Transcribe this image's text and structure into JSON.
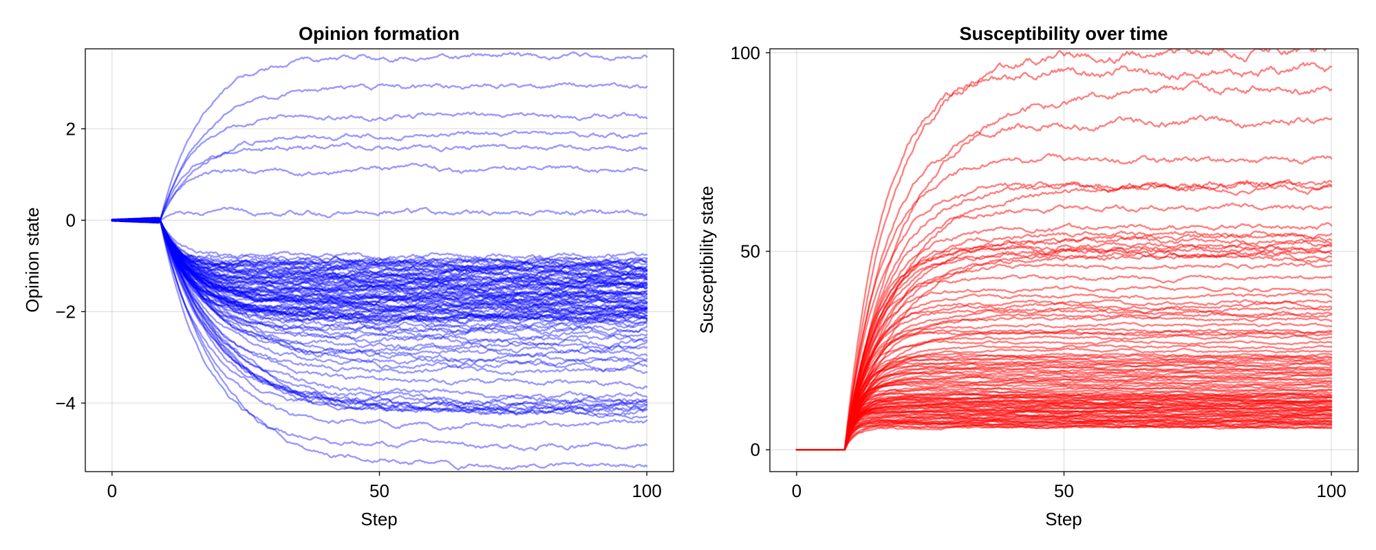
{
  "chart_data": [
    {
      "type": "line",
      "title": "Opinion formation",
      "xlabel": "Step",
      "ylabel": "Opinion state",
      "xlim": [
        -5,
        105
      ],
      "ylim": [
        -5.5,
        3.75
      ],
      "xticks": [
        0,
        50,
        100
      ],
      "yticks": [
        -4,
        -2,
        0,
        2
      ],
      "grid": true,
      "color": "#0000ff",
      "line_opacity": 0.4,
      "step_range": [
        0,
        100
      ],
      "onset_step": 9,
      "initial_value": 0,
      "series_count": 100,
      "series_final_values": [
        3.58,
        2.05,
        1.38,
        -0.85,
        -0.9,
        -0.95,
        -1.0,
        -1.05,
        -1.1,
        -1.15,
        -1.2,
        -1.25,
        -1.3,
        -1.35,
        -1.4,
        -1.45,
        -1.5,
        -1.55,
        -1.6,
        -1.65,
        -1.7,
        -1.75,
        -1.8,
        -1.85,
        -1.9,
        -1.95,
        -2.0,
        -2.05,
        -2.1,
        -2.15,
        -2.2,
        -2.3,
        -2.45,
        -2.65,
        -2.85,
        -3.05,
        -3.25,
        -3.9,
        -4.0,
        -4.1,
        -4.15,
        -4.3,
        -5.4
      ]
    },
    {
      "type": "line",
      "title": "Susceptibility over time",
      "xlabel": "Step",
      "ylabel": "Susceptibility state",
      "xlim": [
        -5,
        105
      ],
      "ylim": [
        -5.5,
        101
      ],
      "xticks": [
        0,
        50,
        100
      ],
      "yticks": [
        0,
        50,
        100
      ],
      "grid": true,
      "color": "#ff0000",
      "line_opacity": 0.5,
      "step_range": [
        0,
        100
      ],
      "onset_step": 9,
      "initial_value": 0,
      "series_count": 100,
      "series_final_values": [
        100,
        89.5,
        67,
        66.5,
        55,
        53,
        51,
        49.5,
        48,
        41,
        37,
        35,
        33.5,
        30,
        29,
        26.5,
        24,
        23,
        22,
        21,
        20,
        19,
        18,
        17,
        16,
        15,
        14,
        13.5,
        13,
        12.5,
        12,
        11.5,
        11,
        10.5,
        10,
        9.5,
        9,
        8.5,
        8,
        7.5,
        7,
        6.5,
        6,
        5.5
      ]
    }
  ]
}
